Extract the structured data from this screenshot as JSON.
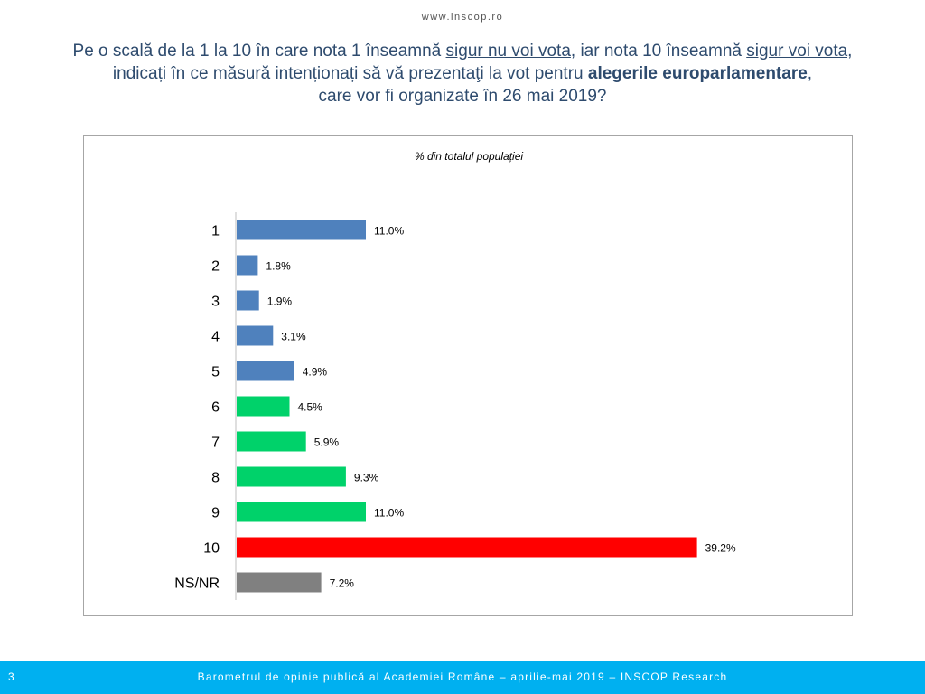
{
  "header": {
    "site": "www.inscop.ro"
  },
  "question": {
    "p1": "Pe o scală de la 1 la 10 în care nota 1 înseamnă ",
    "u1": "sigur nu voi vota",
    "p2": ", iar nota 10 înseamnă ",
    "u2": "sigur voi vota,",
    "p3": " indicați în ce măsură intenționați să vă prezentaţi la vot pentru ",
    "u3": "alegerile europarlamentare",
    "p4": ",",
    "p5": "care vor fi organizate în 26 mai 2019?"
  },
  "chart_data": {
    "type": "bar",
    "orientation": "horizontal",
    "subtitle": "% din totalul populației",
    "categories": [
      "1",
      "2",
      "3",
      "4",
      "5",
      "6",
      "7",
      "8",
      "9",
      "10",
      "NS/NR"
    ],
    "values": [
      11.0,
      1.8,
      1.9,
      3.1,
      4.9,
      4.5,
      5.9,
      9.3,
      11.0,
      39.2,
      7.2
    ],
    "value_labels": [
      "11.0%",
      "1.8%",
      "1.9%",
      "3.1%",
      "4.9%",
      "4.5%",
      "5.9%",
      "9.3%",
      "11.0%",
      "39.2%",
      "7.2%"
    ],
    "colors": [
      "#4f81bd",
      "#4f81bd",
      "#4f81bd",
      "#4f81bd",
      "#4f81bd",
      "#00d26a",
      "#00d26a",
      "#00d26a",
      "#00d26a",
      "#ff0000",
      "#808080"
    ],
    "xlim": [
      0,
      40
    ],
    "grid": false,
    "legend": "none"
  },
  "footer": {
    "page_number": "3",
    "text": "Barometrul de opinie publică al Academiei Române – aprilie-mai 2019 – INSCOP Research"
  }
}
